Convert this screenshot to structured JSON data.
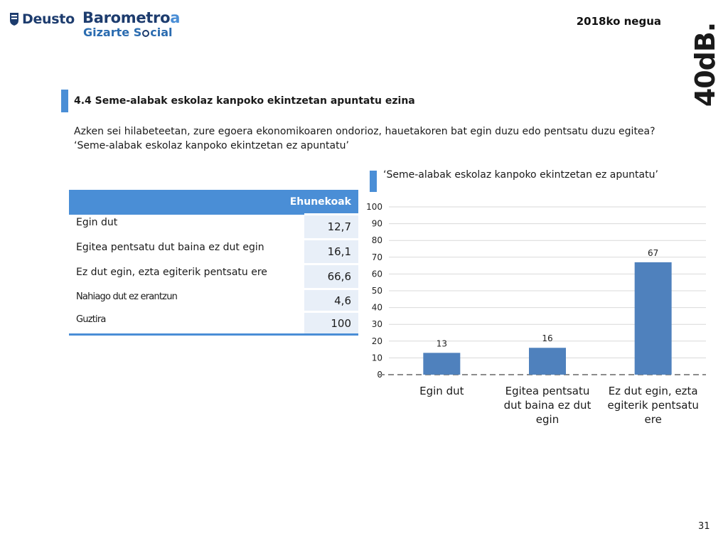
{
  "header": {
    "deusto_logo_text": "Deusto",
    "barometro_prefix": "Barometro",
    "barometro_accent": "a",
    "gizarte": "Gizarte",
    "social_s": "S",
    "social_rest": "cial",
    "season": "2018ko negua",
    "logo_40db": "40dB."
  },
  "section": {
    "title": "4.4 Seme-alabak eskolaz kanpoko ekintzetan apuntatu ezina",
    "question_line1": "Azken sei hilabeteetan, zure egoera ekonomikoaren ondorioz, hauetakoren bat egin duzu edo pentsatu duzu egitea?",
    "question_line2": "‘Seme-alabak eskolaz kanpoko ekintzetan ez apuntatu’"
  },
  "table": {
    "header": "Ehunekoak",
    "rows": [
      {
        "label": "Egin dut",
        "value": "12,7"
      },
      {
        "label": "Egitea pentsatu dut baina ez dut egin",
        "value": "16,1"
      },
      {
        "label": "Ez dut egin, ezta egiterik pentsatu ere",
        "value": "66,6"
      },
      {
        "label": "Nahiago dut ez erantzun",
        "value": "4,6"
      },
      {
        "label": "Guztira",
        "value": "100"
      }
    ]
  },
  "chart_data": {
    "type": "bar",
    "title": "‘Seme-alabak eskolaz kanpoko ekintzetan ez apuntatu’",
    "categories": [
      [
        "Egin dut"
      ],
      [
        "Egitea pentsatu",
        "dut baina ez dut",
        "egin"
      ],
      [
        "Ez dut egin, ezta",
        "egiterik pentsatu",
        "ere"
      ]
    ],
    "values": [
      13,
      16,
      67
    ],
    "ylim": [
      0,
      100
    ],
    "yticks": [
      0,
      10,
      20,
      30,
      40,
      50,
      60,
      70,
      80,
      90,
      100
    ],
    "grid": true,
    "bar_color": "#4f81bd"
  },
  "footer": {
    "page": "31"
  }
}
